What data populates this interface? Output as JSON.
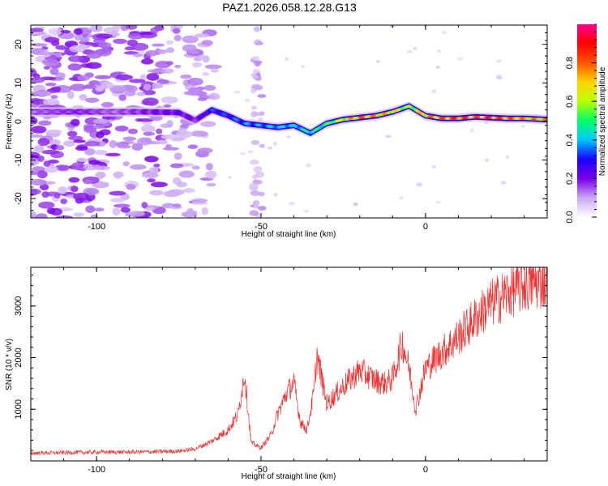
{
  "title": "PAZ1.2026.058.12.28.G13",
  "chart_data": [
    {
      "type": "heatmap",
      "xlabel": "Height of straight line (km)",
      "ylabel": "Frequency (Hz)",
      "xlim": [
        -120,
        37
      ],
      "ylim": [
        -25,
        25
      ],
      "xticks": [
        -100,
        -50,
        0
      ],
      "xtick_labels": [
        "-100",
        "-50",
        "0"
      ],
      "yticks": [
        -20,
        -10,
        0,
        10,
        20
      ],
      "ytick_labels": [
        "-20",
        "-10",
        "0",
        "10",
        "20"
      ],
      "colorbar": {
        "label": "Normalized spectral amplitude",
        "range": [
          0,
          1
        ],
        "ticks": [
          0.0,
          0.2,
          0.4,
          0.6,
          0.8
        ],
        "tick_labels": [
          "0.0",
          "0.2",
          "0.4",
          "0.6",
          "0.8"
        ],
        "colors": [
          "#ffffff",
          "#c9a6f2",
          "#7a00e6",
          "#1a00ff",
          "#00c8ff",
          "#00ff66",
          "#b8ff00",
          "#ffd400",
          "#ff5500",
          "#ff0000",
          "#ff0090"
        ]
      },
      "ridge": {
        "x": [
          -120,
          -105,
          -95,
          -85,
          -75,
          -70,
          -65,
          -60,
          -55,
          -50,
          -45,
          -40,
          -35,
          -30,
          -25,
          -20,
          -15,
          -10,
          -5,
          0,
          5,
          10,
          15,
          20,
          25,
          30,
          37
        ],
        "freq": [
          2.5,
          2.5,
          2.5,
          2.5,
          2.3,
          0.3,
          3.0,
          1.5,
          -0.5,
          -1.0,
          -1.5,
          -1.0,
          -3.0,
          -0.5,
          0.5,
          1.0,
          1.5,
          2.5,
          4.0,
          1.5,
          0.8,
          0.8,
          1.2,
          1.0,
          0.8,
          0.8,
          0.5
        ],
        "amplitude": [
          0.15,
          0.2,
          0.15,
          0.2,
          0.25,
          0.2,
          0.35,
          0.35,
          0.4,
          0.4,
          0.45,
          0.45,
          0.5,
          0.55,
          0.7,
          0.85,
          0.8,
          0.75,
          0.6,
          0.8,
          0.85,
          0.9,
          0.85,
          0.9,
          0.85,
          0.8,
          0.8
        ]
      },
      "noise_region_x": [
        -120,
        -68
      ],
      "vertical_noise_x": -51
    },
    {
      "type": "line",
      "xlabel": "Height of straight line (km)",
      "ylabel": "SNR (10 * v/v)",
      "xlim": [
        -120,
        37
      ],
      "ylim": [
        0,
        3750
      ],
      "xticks": [
        -100,
        -50,
        0
      ],
      "xtick_labels": [
        "-100",
        "-50",
        "0"
      ],
      "yticks": [
        1000,
        2000,
        3000
      ],
      "ytick_labels": [
        "1000",
        "2000",
        "3000"
      ],
      "color": "#ee3333",
      "series": [
        {
          "name": "SNR",
          "x": [
            -120,
            -110,
            -100,
            -90,
            -80,
            -75,
            -70,
            -65,
            -60,
            -57,
            -55,
            -53,
            -50,
            -47,
            -45,
            -42,
            -40,
            -38,
            -36,
            -34,
            -33,
            -30,
            -25,
            -20,
            -15,
            -12,
            -10,
            -7,
            -5,
            -3,
            0,
            5,
            10,
            15,
            20,
            25,
            30,
            37
          ],
          "values": [
            150,
            160,
            170,
            170,
            180,
            190,
            230,
            380,
            600,
            900,
            1700,
            350,
            250,
            500,
            900,
            1350,
            1500,
            750,
            600,
            1300,
            2050,
            1100,
            1450,
            1750,
            1550,
            1500,
            1600,
            2300,
            1800,
            1000,
            1800,
            2100,
            2400,
            2750,
            3050,
            3250,
            3400,
            3500
          ]
        }
      ]
    }
  ]
}
